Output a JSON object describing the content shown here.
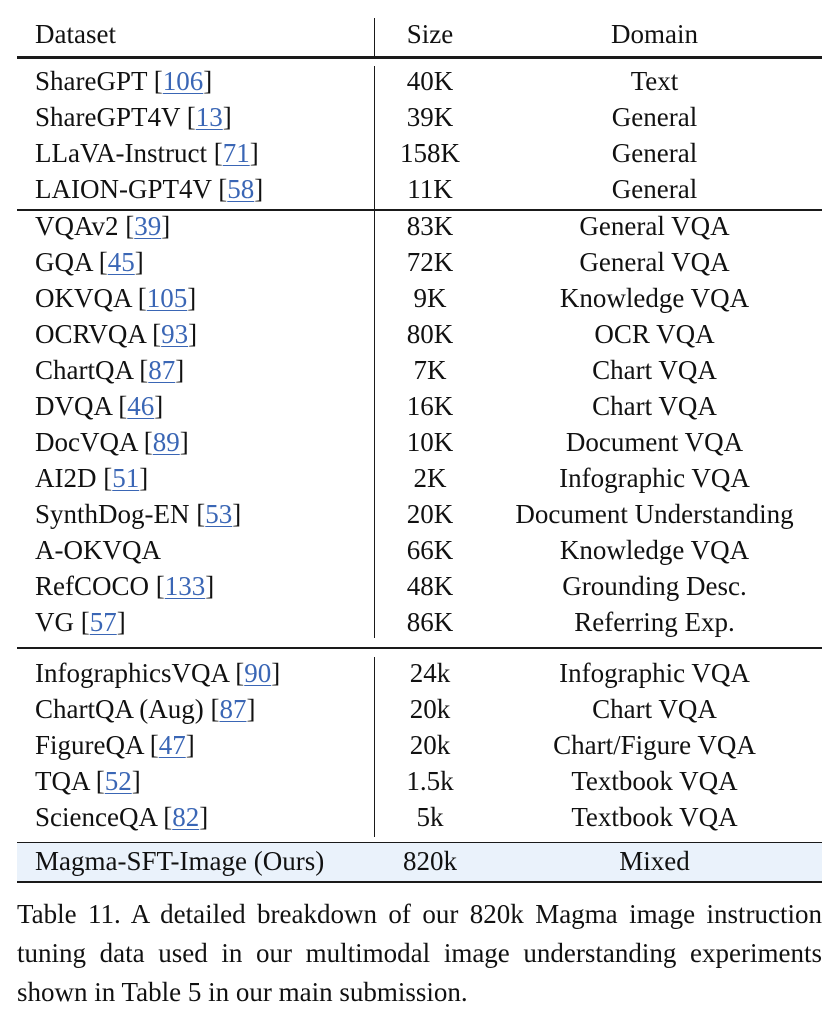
{
  "header": {
    "dataset": "Dataset",
    "size": "Size",
    "domain": "Domain"
  },
  "groups": [
    {
      "rows": [
        {
          "name": "ShareGPT",
          "ref": "106",
          "size": "40K",
          "domain": "Text"
        },
        {
          "name": "ShareGPT4V",
          "ref": "13",
          "size": "39K",
          "domain": "General"
        },
        {
          "name": "LLaVA-Instruct",
          "ref": "71",
          "size": "158K",
          "domain": "General"
        },
        {
          "name": "LAION-GPT4V",
          "ref": "58",
          "size": "11K",
          "domain": "General"
        }
      ]
    },
    {
      "rows": [
        {
          "name": "VQAv2",
          "ref": "39",
          "size": "83K",
          "domain": "General VQA"
        },
        {
          "name": "GQA",
          "ref": "45",
          "size": "72K",
          "domain": "General VQA"
        },
        {
          "name": "OKVQA",
          "ref": "105",
          "size": "9K",
          "domain": "Knowledge VQA"
        },
        {
          "name": "OCRVQA",
          "ref": "93",
          "size": "80K",
          "domain": "OCR VQA"
        },
        {
          "name": "ChartQA",
          "ref": "87",
          "size": "7K",
          "domain": "Chart VQA"
        },
        {
          "name": "DVQA",
          "ref": "46",
          "size": "16K",
          "domain": "Chart VQA"
        },
        {
          "name": "DocVQA",
          "ref": "89",
          "size": "10K",
          "domain": "Document VQA"
        },
        {
          "name": "AI2D",
          "ref": "51",
          "size": "2K",
          "domain": "Infographic VQA"
        },
        {
          "name": "SynthDog-EN",
          "ref": "53",
          "size": "20K",
          "domain": "Document Understanding"
        },
        {
          "name": "A-OKVQA",
          "ref": "",
          "size": "66K",
          "domain": "Knowledge VQA"
        },
        {
          "name": "RefCOCO",
          "ref": "133",
          "size": "48K",
          "domain": "Grounding Desc."
        },
        {
          "name": "VG",
          "ref": "57",
          "size": "86K",
          "domain": "Referring Exp."
        }
      ]
    },
    {
      "rows": [
        {
          "name": "InfographicsVQA",
          "ref": "90",
          "size": "24k",
          "domain": "Infographic VQA"
        },
        {
          "name": "ChartQA (Aug)",
          "ref": "87",
          "size": "20k",
          "domain": "Chart VQA"
        },
        {
          "name": "FigureQA",
          "ref": "47",
          "size": "20k",
          "domain": "Chart/Figure VQA"
        },
        {
          "name": "TQA",
          "ref": "52",
          "size": "1.5k",
          "domain": "Textbook VQA"
        },
        {
          "name": "ScienceQA",
          "ref": "82",
          "size": "5k",
          "domain": "Textbook VQA"
        }
      ]
    }
  ],
  "ours": {
    "name": "Magma-SFT-Image (Ours)",
    "size": "820k",
    "domain": "Mixed"
  },
  "caption": "Table 11.  A detailed breakdown of our 820k Magma image instruction tuning data used in our multimodal image understanding experiments shown in Table 5 in our main submission.",
  "colors": {
    "ours_bg": "#eaf2fb",
    "link": "#3a66b5"
  }
}
